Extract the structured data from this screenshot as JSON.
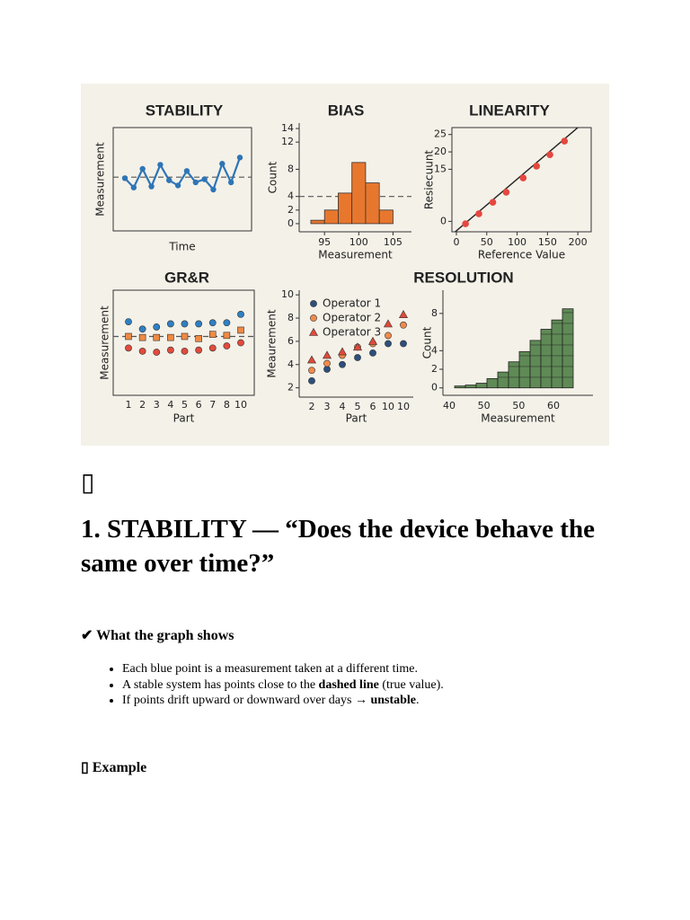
{
  "chart_data": [
    {
      "type": "line",
      "title": "STABILITY",
      "x_label": "Time",
      "y_label": "Measurement",
      "values": [
        5.1,
        4.2,
        6.0,
        4.3,
        6.4,
        4.9,
        4.4,
        5.8,
        4.7,
        5.0,
        4.0,
        6.5,
        4.7,
        7.1
      ],
      "ylim": [
        0,
        10
      ],
      "reference": 5.2,
      "color": "#2e75b6"
    },
    {
      "type": "histogram",
      "title": "BIAS",
      "x_label": "Measurement",
      "y_label": "Count",
      "bins": [
        93,
        95,
        97,
        99,
        101,
        103,
        105
      ],
      "values": [
        0.5,
        2,
        4.5,
        9,
        6,
        2
      ],
      "xlim": [
        91.3,
        107.7
      ],
      "xticks": [
        95,
        100,
        105
      ],
      "ylim": [
        -1.2,
        14.8
      ],
      "yticks": [
        14,
        12,
        8,
        4,
        2,
        0
      ],
      "reference": 4,
      "color": "#e8772e"
    },
    {
      "type": "scatter",
      "title": "LINEARITY",
      "x_label": "Reference Value",
      "y_label": "Resiecuunt",
      "x": [
        15,
        37,
        60,
        82,
        110,
        132,
        154,
        178
      ],
      "values": [
        -0.7,
        2.2,
        5.5,
        8.4,
        12.5,
        15.9,
        19.2,
        23.1
      ],
      "xlim": [
        -7.4,
        222
      ],
      "xticks": [
        0,
        50,
        100,
        150,
        200
      ],
      "ylim": [
        -3,
        27
      ],
      "yticks": [
        25,
        20,
        15,
        0
      ],
      "fit": {
        "x": [
          -2,
          200
        ],
        "y": [
          -3,
          27
        ]
      },
      "color": "#e5483f"
    },
    {
      "type": "dot",
      "title": "GR&R",
      "x_label": "Part",
      "y_label": "Measurement",
      "categories": [
        "1",
        "2",
        "3",
        "4",
        "5",
        "6",
        "7",
        "8",
        "10"
      ],
      "ylim": [
        0,
        10
      ],
      "reference": 5.6,
      "series": [
        {
          "color": "#2f80c3",
          "marker": "circle",
          "values": [
            7.0,
            6.3,
            6.5,
            6.8,
            6.8,
            6.8,
            6.9,
            6.9,
            7.7
          ]
        },
        {
          "color": "#ee8a45",
          "marker": "square",
          "values": [
            5.6,
            5.5,
            5.5,
            5.5,
            5.6,
            5.4,
            5.8,
            5.7,
            6.2
          ]
        },
        {
          "color": "#e04b3d",
          "marker": "circle",
          "values": [
            4.5,
            4.2,
            4.1,
            4.3,
            4.2,
            4.3,
            4.5,
            4.7,
            5.0
          ]
        }
      ]
    },
    {
      "type": "dot",
      "x_label": "Part",
      "y_label": "Meaurement",
      "categories": [
        "2",
        "3",
        "4",
        "5",
        "6",
        "10",
        "10"
      ],
      "ylim": [
        1.2,
        10.4
      ],
      "yticks": [
        10,
        8,
        6,
        4,
        2
      ],
      "legend": "top-left",
      "series": [
        {
          "name": "Operator 1",
          "color": "#2c4f7c",
          "marker": "circle",
          "values": [
            2.6,
            3.6,
            4.0,
            4.6,
            5.0,
            5.8,
            5.8
          ]
        },
        {
          "name": "Operator 2",
          "color": "#f08a4b",
          "marker": "circle",
          "values": [
            3.5,
            4.1,
            4.8,
            5.5,
            5.8,
            6.5,
            7.4
          ]
        },
        {
          "name": "Operator 3",
          "color": "#e04a3a",
          "marker": "triangle",
          "values": [
            4.4,
            4.8,
            5.1,
            5.5,
            6.0,
            7.5,
            8.3
          ]
        }
      ]
    },
    {
      "type": "bar",
      "title": "RESOLUTION",
      "x_label": "Measurement",
      "y_label": "Count",
      "values": [
        0.2,
        0.3,
        0.5,
        1.0,
        1.7,
        2.8,
        3.9,
        5.1,
        6.3,
        7.3,
        8.5
      ],
      "xtick_labels": [
        "40",
        "50",
        "50",
        "60"
      ],
      "ylim": [
        -0.8,
        10.5
      ],
      "yticks": [
        8,
        4,
        2,
        0
      ],
      "color": "#5f8a56"
    }
  ],
  "document": {
    "icon": "▯",
    "heading": "1. STABILITY — “Does the device behave the same over time?”",
    "section": "✔ What the graph shows",
    "bullets": [
      {
        "parts": [
          "Each blue point is a measurement taken at a different time."
        ]
      },
      {
        "parts": [
          "A stable system has points close to the ",
          "dashed line",
          " (true value)."
        ]
      },
      {
        "parts": [
          "If points drift upward or downward over days → ",
          "unstable",
          "."
        ]
      }
    ],
    "example": "▯ Example"
  }
}
